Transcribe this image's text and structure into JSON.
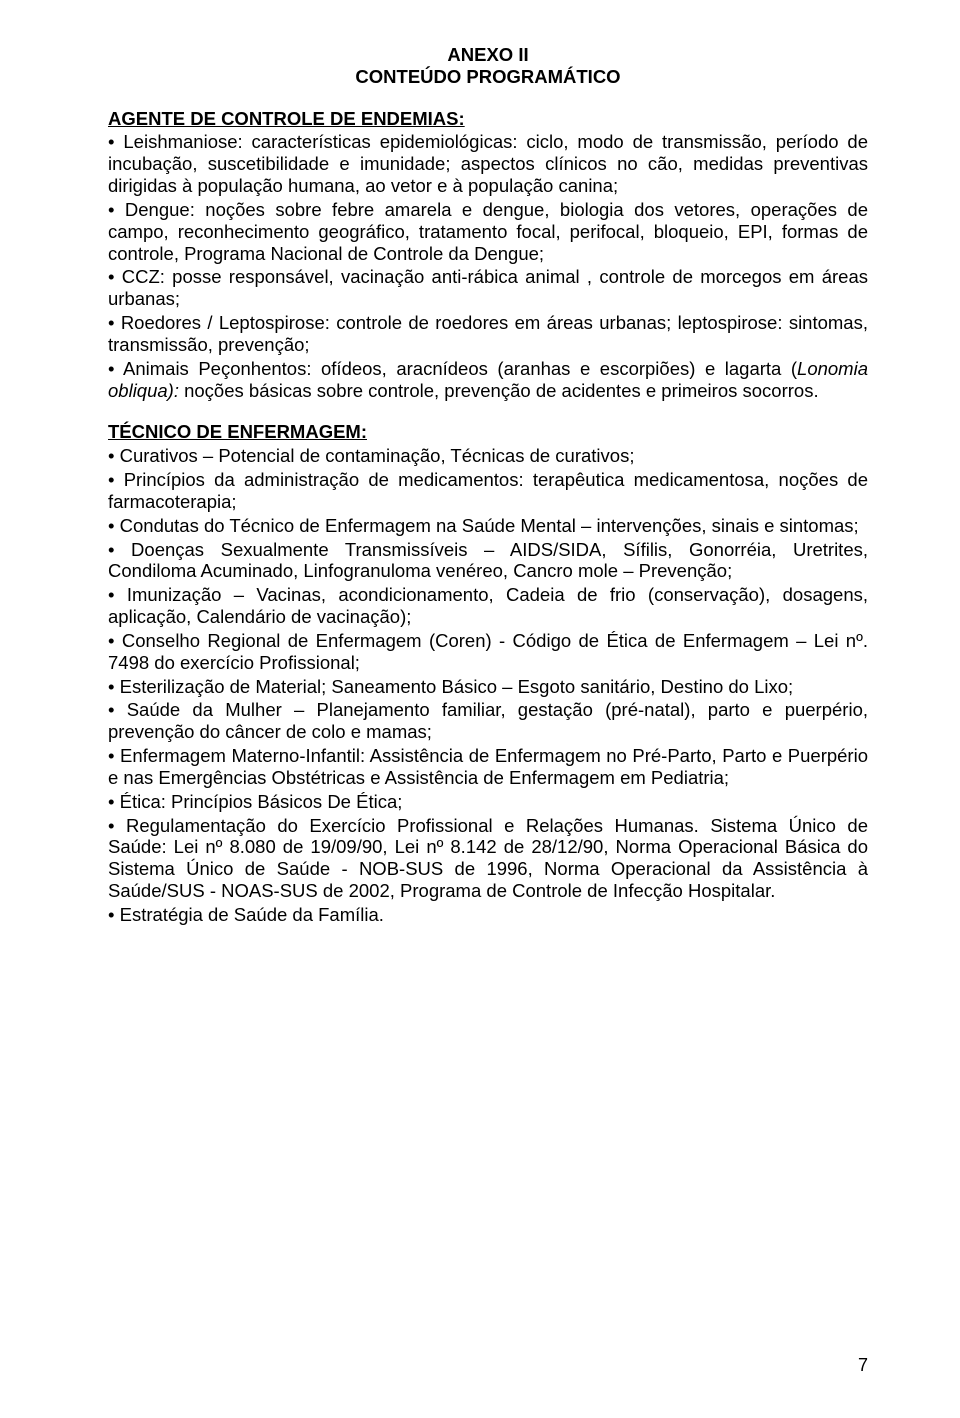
{
  "annex": {
    "line1": "ANEXO II",
    "line2": "CONTEÚDO PROGRAMÁTICO"
  },
  "section1": {
    "heading": "AGENTE DE CONTROLE DE ENDEMIAS:",
    "items": [
      "Leishmaniose: características epidemiológicas: ciclo, modo de transmissão, período de incubação, suscetibilidade e imunidade; aspectos clínicos no cão, medidas preventivas dirigidas à população humana, ao vetor e à população canina;",
      "Dengue: noções sobre febre amarela e dengue, biologia dos vetores, operações de campo, reconhecimento geográfico, tratamento focal, perifocal, bloqueio, EPI, formas de controle, Programa Nacional de Controle da Dengue;",
      "CCZ: posse responsável, vacinação anti-rábica animal , controle de morcegos em áreas urbanas;",
      "Roedores / Leptospirose: controle de roedores em áreas urbanas; leptospirose: sintomas, transmissão, prevenção;"
    ],
    "item5_pre": "Animais Peçonhentos: ofídeos, aracnídeos (aranhas e escorpiões) e lagarta (",
    "item5_italic": "Lonomia obliqua):",
    "item5_post": " noções básicas sobre controle, prevenção de acidentes e primeiros socorros."
  },
  "section2": {
    "heading": "TÉCNICO DE ENFERMAGEM:",
    "items": [
      "Curativos – Potencial de contaminação, Técnicas de curativos;",
      "Princípios da administração de medicamentos: terapêutica medicamentosa, noções de farmacoterapia;",
      "Condutas do Técnico de Enfermagem na Saúde Mental – intervenções, sinais e sintomas;",
      "Doenças Sexualmente Transmissíveis – AIDS/SIDA, Sífilis, Gonorréia, Uretrites, Condiloma Acuminado, Linfogranuloma venéreo, Cancro mole – Prevenção;",
      "Imunização – Vacinas, acondicionamento, Cadeia de frio (conservação), dosagens, aplicação, Calendário de vacinação);",
      "Conselho Regional de Enfermagem (Coren) - Código de Ética de Enfermagem – Lei nº. 7498 do exercício Profissional;",
      "Esterilização de Material; Saneamento Básico – Esgoto sanitário, Destino do Lixo;",
      "Saúde da Mulher – Planejamento familiar, gestação (pré-natal), parto e puerpério, prevenção do câncer de colo e mamas;",
      "Enfermagem Materno-Infantil: Assistência de Enfermagem no Pré-Parto, Parto e Puerpério e nas Emergências Obstétricas e Assistência de Enfermagem em Pediatria;",
      "Ética: Princípios Básicos De Ética;",
      "Regulamentação do Exercício Profissional e Relações Humanas. Sistema Único de Saúde: Lei nº 8.080 de 19/09/90, Lei nº 8.142 de 28/12/90, Norma Operacional Básica do Sistema Único de Saúde - NOB-SUS de 1996, Norma Operacional da Assistência à Saúde/SUS - NOAS-SUS de 2002, Programa de Controle de Infecção Hospitalar.",
      "Estratégia de Saúde da Família."
    ]
  },
  "pageNumber": "7"
}
